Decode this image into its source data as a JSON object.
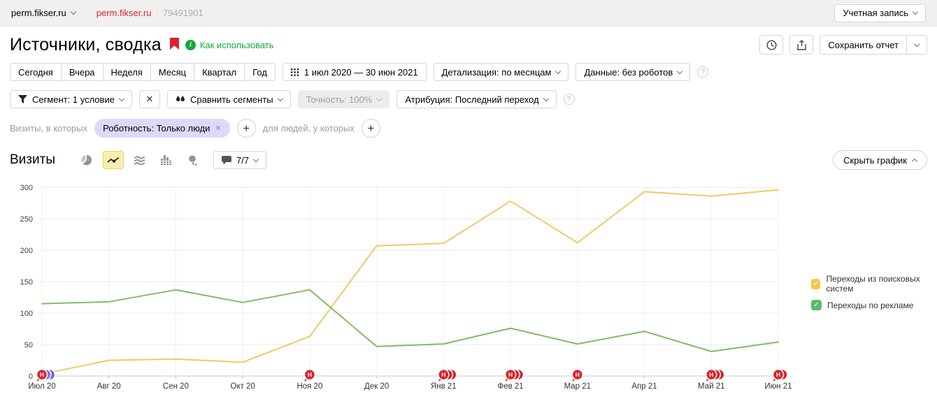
{
  "topbar": {
    "counter_name": "perm.fikser.ru",
    "counter_link": "perm.fikser.ru",
    "separator": "·",
    "counter_id": "79491901",
    "account_button": "Учетная запись"
  },
  "header": {
    "title": "Источники, сводка",
    "howto_link": "Как использовать",
    "save_report": "Сохранить отчет"
  },
  "period_bar": {
    "presets": [
      "Сегодня",
      "Вчера",
      "Неделя",
      "Месяц",
      "Квартал",
      "Год"
    ],
    "date_range": "1 июл 2020 — 30 июн 2021",
    "detail": "Детализация: по месяцам",
    "data_mode": "Данные: без роботов"
  },
  "segment_bar": {
    "segment": "Сегмент: 1 условие",
    "compare": "Сравнить сегменты",
    "accuracy": "Точность: 100%",
    "attribution": "Атрибуция: Последний переход"
  },
  "filter_bar": {
    "visits_label": "Визиты, в которых",
    "chip": "Роботность: Только люди",
    "people_label": "для людей, у которых"
  },
  "chart_header": {
    "title": "Визиты",
    "goals_count": "7/7",
    "hide_chart": "Скрыть график"
  },
  "icons": {
    "chevron": "∨",
    "close": "✕",
    "plus": "+",
    "question": "?",
    "check": "✓",
    "info": "i"
  },
  "colors": {
    "brand_red": "#d8232a",
    "green_link": "#0faa3c",
    "chip_bg": "#ded9fa",
    "selected_icon_bg": "#fbeeb2",
    "grid": "#e8e8e8",
    "axis": "#c9c9c9"
  },
  "chart_data": {
    "type": "line",
    "title": "Визиты",
    "categories": [
      "Июл 20",
      "Авг 20",
      "Сен 20",
      "Окт 20",
      "Ноя 20",
      "Дек 20",
      "Янв 21",
      "Фев 21",
      "Мар 21",
      "Апр 21",
      "Май 21",
      "Июн 21"
    ],
    "series": [
      {
        "name": "Переходы из поисковых систем",
        "color": "#edcb63",
        "swatch": "#f2c94c",
        "values": [
          3,
          25,
          27,
          22,
          63,
          207,
          211,
          278,
          212,
          293,
          286,
          296
        ]
      },
      {
        "name": "Переходы по рекламе",
        "color": "#86bb60",
        "swatch": "#5fbb63",
        "values": [
          115,
          118,
          137,
          117,
          137,
          47,
          51,
          76,
          51,
          71,
          39,
          54
        ]
      }
    ],
    "xlabel": "",
    "ylabel": "",
    "ylim": [
      0,
      300
    ],
    "yticks": [
      0,
      50,
      100,
      150,
      200,
      250,
      300
    ],
    "grid": true,
    "legend_position": "right",
    "markers": [
      {
        "index": 0,
        "label": "Н",
        "circles": [
          "#d8232a",
          "#8a75d9",
          "#6f60d2"
        ]
      },
      {
        "index": 4,
        "label": "Н",
        "circles": [
          "#d8232a"
        ]
      },
      {
        "index": 6,
        "label": "Н",
        "circles": [
          "#d8232a",
          "#d8232a",
          "#d8232a"
        ]
      },
      {
        "index": 7,
        "label": "Н",
        "circles": [
          "#d8232a",
          "#d8232a",
          "#d8232a"
        ]
      },
      {
        "index": 8,
        "label": "Н",
        "circles": [
          "#d8232a"
        ]
      },
      {
        "index": 10,
        "label": "Н",
        "circles": [
          "#d8232a",
          "#d8232a",
          "#d8232a"
        ]
      },
      {
        "index": 11,
        "label": "Н",
        "circles": [
          "#d8232a",
          "#d8232a"
        ]
      }
    ]
  }
}
